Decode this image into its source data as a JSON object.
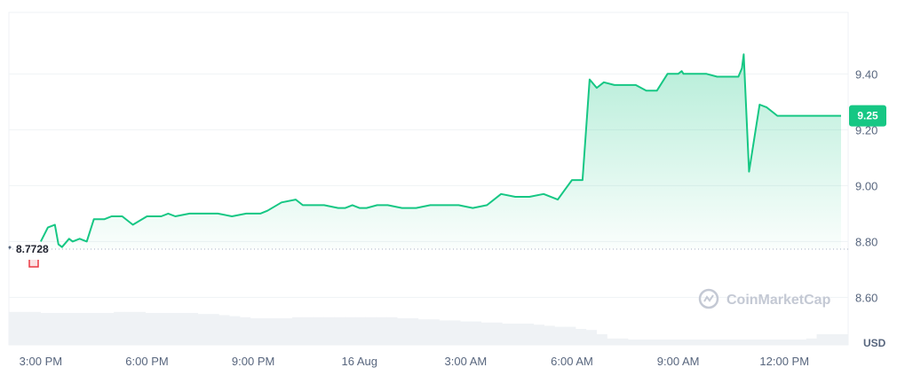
{
  "chart_data": {
    "type": "line",
    "series": [
      {
        "x": [
          0,
          0.2,
          0.4,
          0.5,
          0.6,
          0.8,
          0.9,
          1.1,
          1.3,
          1.5,
          1.6,
          1.8,
          2.0,
          2.3,
          2.6,
          3.0,
          3.2,
          3.4,
          3.6,
          3.8,
          4.2,
          4.6,
          5.0,
          5.4,
          5.8,
          6.2,
          6.4,
          6.8,
          7.2,
          7.4,
          7.6,
          8.0,
          8.4,
          8.6,
          8.8,
          9.0,
          9.2,
          9.5,
          9.8,
          10.2,
          10.6,
          11.0,
          11.4,
          11.8,
          12.2,
          12.6,
          13.0,
          13.4,
          13.8,
          14.2,
          14.6,
          15.0,
          15.3,
          15.5,
          15.7,
          15.9,
          16.2,
          16.5,
          16.8,
          17.1,
          17.4,
          17.7,
          18.0,
          18.1,
          18.15,
          18.2,
          18.3,
          18.5,
          18.8,
          19.1,
          19.4,
          19.7,
          19.8,
          19.85,
          20.0,
          20.3,
          20.5,
          20.8,
          21.0,
          21.2,
          21.5,
          21.8,
          22.0,
          22.2,
          22.25,
          22.3,
          22.35,
          22.4,
          22.5,
          22.6
        ],
        "values": [
          8.8,
          8.85,
          8.86,
          8.79,
          8.78,
          8.81,
          8.8,
          8.81,
          8.8,
          8.88,
          8.88,
          8.88,
          8.89,
          8.89,
          8.86,
          8.89,
          8.89,
          8.89,
          8.9,
          8.89,
          8.9,
          8.9,
          8.9,
          8.89,
          8.9,
          8.9,
          8.91,
          8.94,
          8.95,
          8.93,
          8.93,
          8.93,
          8.92,
          8.92,
          8.93,
          8.92,
          8.92,
          8.93,
          8.93,
          8.92,
          8.92,
          8.93,
          8.93,
          8.93,
          8.92,
          8.93,
          8.97,
          8.96,
          8.96,
          8.97,
          8.95,
          9.02,
          9.02,
          9.38,
          9.35,
          9.37,
          9.36,
          9.36,
          9.36,
          9.34,
          9.34,
          9.4,
          9.4,
          9.41,
          9.4,
          9.4,
          9.4,
          9.4,
          9.4,
          9.39,
          9.39,
          9.39,
          9.42,
          9.47,
          9.05,
          9.29,
          9.28,
          9.25,
          9.25,
          9.25,
          9.25,
          9.25,
          9.25,
          9.25,
          9.25,
          9.25,
          9.25,
          9.25,
          9.25,
          9.25
        ]
      }
    ],
    "volume": [
      0.62,
      0.62,
      0.62,
      0.6,
      0.6,
      0.6,
      0.6,
      0.6,
      0.6,
      0.6,
      0.62,
      0.62,
      0.62,
      0.6,
      0.6,
      0.6,
      0.6,
      0.6,
      0.58,
      0.58,
      0.56,
      0.54,
      0.52,
      0.5,
      0.5,
      0.5,
      0.5,
      0.52,
      0.52,
      0.52,
      0.52,
      0.52,
      0.52,
      0.52,
      0.52,
      0.52,
      0.52,
      0.5,
      0.5,
      0.48,
      0.48,
      0.46,
      0.46,
      0.44,
      0.44,
      0.42,
      0.42,
      0.4,
      0.4,
      0.4,
      0.38,
      0.36,
      0.34,
      0.34,
      0.3,
      0.28,
      0.2,
      0.12,
      0.12,
      0.1,
      0.1,
      0.1,
      0.1,
      0.1,
      0.1,
      0.1,
      0.1,
      0.1,
      0.1,
      0.1,
      0.1,
      0.1,
      0.1,
      0.1,
      0.1,
      0.1,
      0.12,
      0.2,
      0.2,
      0.2
    ],
    "x_ticks": [
      {
        "x": 0,
        "label": "3:00 PM"
      },
      {
        "x": 3,
        "label": "6:00 PM"
      },
      {
        "x": 6,
        "label": "9:00 PM"
      },
      {
        "x": 9,
        "label": "16 Aug"
      },
      {
        "x": 12,
        "label": "3:00 AM"
      },
      {
        "x": 15,
        "label": "6:00 AM"
      },
      {
        "x": 18,
        "label": "9:00 AM"
      },
      {
        "x": 21,
        "label": "12:00 PM"
      }
    ],
    "y_ticks": [
      8.6,
      8.8,
      9.0,
      9.2,
      9.4
    ],
    "y_tick_labels": [
      "8.60",
      "8.80",
      "9.00",
      "9.20",
      "9.40"
    ],
    "xlim": [
      -0.9,
      22.8
    ],
    "ylim": [
      8.43,
      9.62
    ],
    "ylabel": "USD",
    "reference_line": {
      "value": 8.7728,
      "label": "8.7728"
    },
    "current_price": {
      "value": 9.25,
      "label": "9.25"
    },
    "grid": true,
    "colors": {
      "line": "#16c784",
      "area_top": "#16c784",
      "badge": "#16c784",
      "volume": "#eff2f5",
      "grid": "#eff2f5",
      "ref_line": "#a6b0c3",
      "down_marker": "#ea3943"
    }
  },
  "watermark": {
    "text": "CoinMarketCap",
    "icon": "coinmarketcap-logo-icon"
  }
}
